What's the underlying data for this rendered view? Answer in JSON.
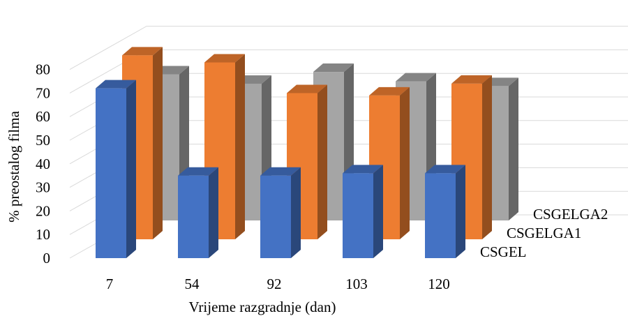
{
  "chart_data": {
    "type": "bar",
    "title": "",
    "xlabel": "Vrijeme razgradnje (dan)",
    "ylabel": "% preostalog filma",
    "ylim": [
      0,
      80
    ],
    "yticks": [
      0,
      10,
      20,
      30,
      40,
      50,
      60,
      70,
      80
    ],
    "categories": [
      "7",
      "54",
      "92",
      "103",
      "120"
    ],
    "series": [
      {
        "name": "CSGEL",
        "values": [
          72,
          35,
          35,
          36,
          36
        ],
        "color": "#4472C4"
      },
      {
        "name": "CSGELGA1",
        "values": [
          78,
          75,
          62,
          61,
          66
        ],
        "color": "#ED7D31"
      },
      {
        "name": "CSGELGA2",
        "values": [
          62,
          58,
          63,
          59,
          57
        ],
        "color": "#A5A5A5"
      }
    ],
    "grid": true,
    "style": "3d-column"
  }
}
